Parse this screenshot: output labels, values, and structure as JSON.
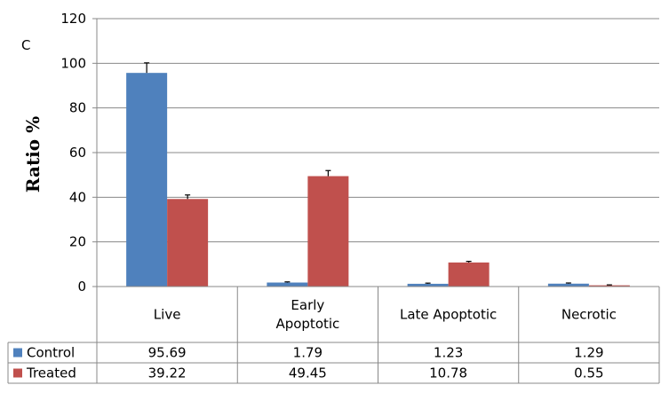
{
  "chart_data": {
    "type": "bar",
    "panel_label": "C",
    "title": "",
    "xlabel": "",
    "ylabel": "Ratio %",
    "ylim": [
      0,
      120
    ],
    "yticks": [
      0,
      20,
      40,
      60,
      80,
      100,
      120
    ],
    "grid": true,
    "legend": "data-table",
    "categories": [
      [
        "Live"
      ],
      [
        "Early",
        "Apoptotic"
      ],
      [
        "Late Apoptotic"
      ],
      [
        "Necrotic"
      ]
    ],
    "series": [
      {
        "name": "Control",
        "color": "#4F81BD",
        "values": [
          95.69,
          1.79,
          1.23,
          1.29
        ],
        "error": [
          4.5,
          0.3,
          0.3,
          0.3
        ]
      },
      {
        "name": "Treated",
        "color": "#C0504D",
        "values": [
          39.22,
          49.45,
          10.78,
          0.55
        ],
        "error": [
          1.8,
          2.5,
          0.5,
          0.2
        ]
      }
    ],
    "table": [
      {
        "name": "Control",
        "cells": [
          "95.69",
          "1.79",
          "1.23",
          "1.29"
        ]
      },
      {
        "name": "Treated",
        "cells": [
          "39.22",
          "49.45",
          "10.78",
          "0.55"
        ]
      }
    ]
  }
}
